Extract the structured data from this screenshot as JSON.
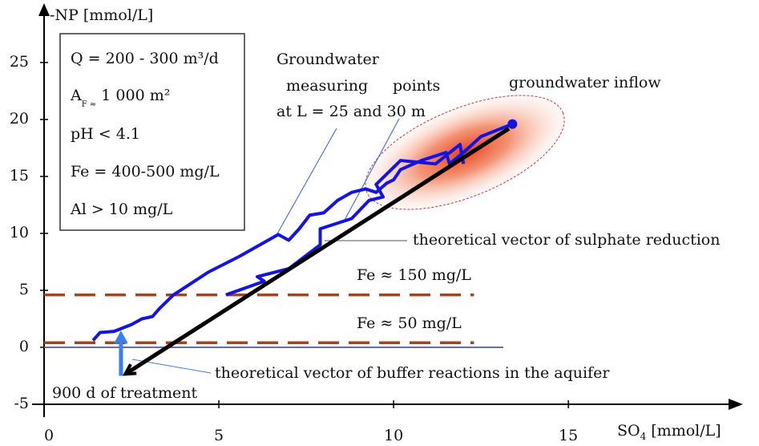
{
  "chart_data": {
    "type": "line",
    "y_label": "-NP [mmol/L]",
    "x_label": {
      "main": "SO",
      "sub": "4",
      "rest": " [mmol/L]"
    },
    "xlim": [
      0,
      19.4
    ],
    "ylim": [
      -5,
      29.5
    ],
    "xticks": [
      0,
      5,
      10,
      15
    ],
    "yticks": [
      -5,
      0,
      5,
      10,
      15,
      20,
      25
    ],
    "grid": false,
    "series": [
      {
        "color": "#1414e0",
        "x": [
          1.4,
          1.6,
          2.0,
          2.5,
          2.8,
          3.1,
          3.3,
          3.7,
          4.7,
          5.6,
          6.7,
          7.0,
          7.3,
          7.6,
          8.0,
          8.4,
          8.8,
          9.2,
          9.5,
          9.8,
          10.0,
          10.2,
          10.8,
          11.5,
          11.6,
          12.0,
          12.5,
          13.4
        ],
        "values": [
          0.6,
          1.3,
          1.4,
          2.0,
          2.5,
          2.7,
          3.4,
          4.6,
          6.6,
          8.0,
          9.9,
          9.4,
          10.4,
          11.6,
          11.8,
          12.9,
          13.6,
          13.9,
          13.6,
          14.4,
          14.7,
          15.6,
          16.4,
          17.1,
          16.1,
          17.1,
          18.5,
          19.6
        ]
      },
      {
        "color": "#1414e0",
        "x": [
          5.2,
          6.3,
          6.1,
          7.0,
          7.9,
          7.9,
          8.8,
          9.3,
          9.7,
          9.5,
          10.2,
          11.2,
          11.9,
          12.0
        ],
        "values": [
          4.6,
          5.8,
          6.2,
          6.9,
          9.0,
          10.4,
          11.3,
          12.9,
          13.2,
          14.3,
          16.4,
          16.1,
          17.8,
          16.1
        ]
      }
    ],
    "hlines": [
      {
        "value": 4.6,
        "x": [
          0,
          12.3
        ],
        "color": "#a0461e",
        "label": "Fe ≈ 150 mg/L"
      },
      {
        "value": 0.4,
        "x": [
          0,
          12.3
        ],
        "color": "#a0461e",
        "label": "Fe ≈ 50 mg/L"
      }
    ],
    "vectors": [
      {
        "x": [
          13.3,
          2.4
        ],
        "y": [
          19.2,
          -2.2
        ],
        "color": "#000000",
        "label": "theoretical vector of sulphate reduction"
      },
      {
        "x": [
          2.2,
          2.2
        ],
        "y": [
          -2.5,
          0.9
        ],
        "color": "#3a7ff0",
        "label": "theoretical vector of buffer reactions in the aquifer"
      }
    ],
    "box_lines": [
      "Q = 200 - 300 m³/d",
      {
        "main": "A",
        "sub": "F ≈",
        "rest": " 1 000 m²"
      },
      "pH < 4.1",
      "Fe = 400-500 mg/L",
      "Al > 10 mg/L"
    ],
    "annotations": [
      "Groundwater",
      "measuring",
      "points",
      "at L = 25 and 30 m",
      "groundwater inflow",
      "900 d of treatment"
    ]
  }
}
